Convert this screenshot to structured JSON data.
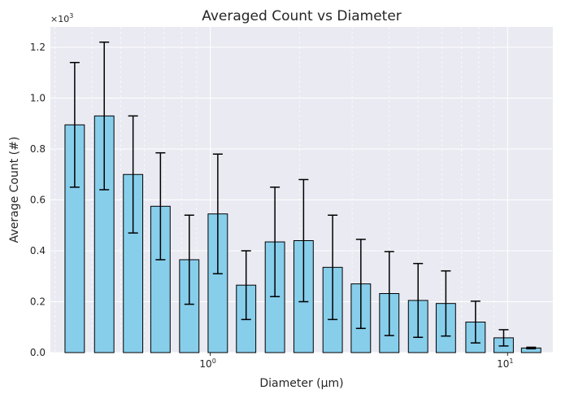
{
  "chart_data": {
    "type": "bar",
    "title": "Averaged Count vs Diameter",
    "xlabel": "Diameter (μm)",
    "ylabel": "Average Count (#)",
    "x_scale": "log",
    "y_multiplier_label": "×10³",
    "y_multiplier_base": "×10",
    "y_multiplier_exp": "3",
    "ylim": [
      0,
      1.28
    ],
    "yticks": [
      "0.0",
      "0.2",
      "0.4",
      "0.6",
      "0.8",
      "1.0",
      "1.2"
    ],
    "xticks": [
      {
        "value": 1,
        "base": "10",
        "exp": "0"
      },
      {
        "value": 10,
        "base": "10",
        "exp": "1"
      }
    ],
    "grid": true,
    "bar_color": "#87CEEB",
    "edge_color": "#000000",
    "background_color": "#EAEAF2",
    "x": [
      0.35,
      0.44,
      0.55,
      0.68,
      0.85,
      1.06,
      1.32,
      1.65,
      2.06,
      2.58,
      3.21,
      4.0,
      5.0,
      6.2,
      7.8,
      9.7,
      12.0
    ],
    "values": [
      0.895,
      0.93,
      0.7,
      0.575,
      0.365,
      0.545,
      0.265,
      0.435,
      0.44,
      0.335,
      0.27,
      0.232,
      0.205,
      0.193,
      0.12,
      0.058,
      0.018
    ],
    "error": [
      0.245,
      0.29,
      0.23,
      0.21,
      0.175,
      0.235,
      0.135,
      0.215,
      0.24,
      0.205,
      0.175,
      0.165,
      0.145,
      0.128,
      0.082,
      0.032,
      0.003
    ]
  }
}
